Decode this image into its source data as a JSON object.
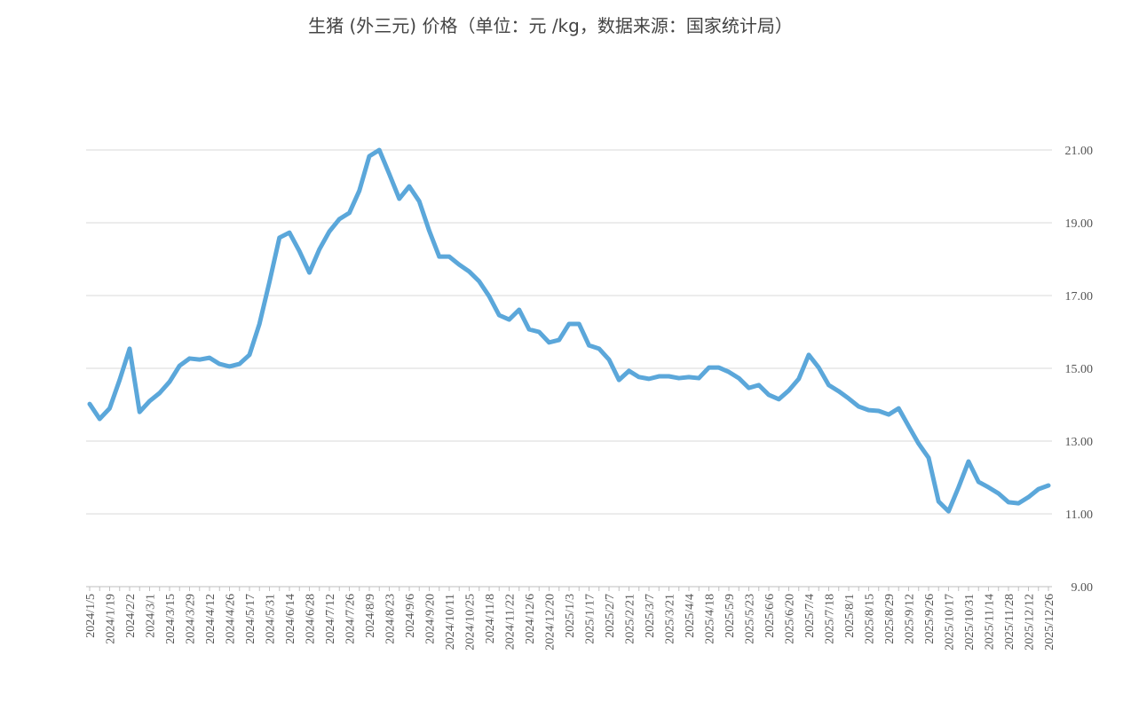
{
  "chart_data": {
    "type": "line",
    "title": "生猪 (外三元) 价格（单位：元 /kg，数据来源：国家统计局）",
    "categories": [
      "2024/1/5",
      null,
      "2024/1/19",
      null,
      "2024/2/2",
      null,
      "2024/3/1",
      null,
      "2024/3/15",
      null,
      "2024/3/29",
      null,
      "2024/4/12",
      null,
      "2024/4/26",
      null,
      "2024/5/17",
      null,
      "2024/5/31",
      null,
      "2024/6/14",
      null,
      "2024/6/28",
      null,
      "2024/7/12",
      null,
      "2024/7/26",
      null,
      "2024/8/9",
      null,
      "2024/8/23",
      null,
      "2024/9/6",
      null,
      "2024/9/20",
      null,
      "2024/10/11",
      null,
      "2024/10/25",
      null,
      "2024/11/8",
      null,
      "2024/11/22",
      null,
      "2024/12/6",
      null,
      "2024/12/20",
      null,
      "2025/1/3",
      null,
      "2025/1/17",
      null,
      "2025/2/7",
      null,
      "2025/2/21",
      null,
      "2025/3/7",
      null,
      "2025/3/21",
      null,
      "2025/4/4",
      null,
      "2025/4/18",
      null,
      "2025/5/9",
      null,
      "2025/5/23",
      null,
      "2025/6/6",
      null,
      "2025/6/20",
      null,
      "2025/7/4",
      null,
      "2025/7/18",
      null,
      "2025/8/1",
      null,
      "2025/8/15",
      null,
      "2025/8/29",
      null,
      "2025/9/12",
      null,
      "2025/9/26",
      null,
      "2025/10/17",
      null,
      "2025/10/31",
      null,
      "2025/11/14",
      null,
      "2025/11/28",
      null,
      "2025/12/12",
      null,
      "2025/12/26"
    ],
    "series": [
      {
        "color": "#5ba7da",
        "values": [
          14.02,
          13.61,
          13.9,
          14.68,
          15.54,
          13.8,
          14.1,
          14.32,
          14.63,
          15.07,
          15.27,
          15.24,
          15.29,
          15.12,
          15.05,
          15.12,
          15.37,
          16.22,
          17.37,
          18.59,
          18.73,
          18.22,
          17.63,
          18.27,
          18.76,
          19.1,
          19.27,
          19.88,
          20.83,
          21.0,
          20.34,
          19.66,
          20.0,
          19.59,
          18.78,
          18.07,
          18.07,
          17.85,
          17.66,
          17.39,
          16.98,
          16.46,
          16.34,
          16.61,
          16.07,
          16.0,
          15.71,
          15.78,
          16.22,
          16.22,
          15.63,
          15.54,
          15.24,
          14.68,
          14.93,
          14.76,
          14.71,
          14.78,
          14.78,
          14.73,
          14.76,
          14.73,
          15.02,
          15.02,
          14.9,
          14.73,
          14.46,
          14.54,
          14.27,
          14.15,
          14.39,
          14.71,
          15.37,
          15.02,
          14.54,
          14.37,
          14.17,
          13.95,
          13.85,
          13.83,
          13.73,
          13.9,
          13.41,
          12.93,
          12.54,
          11.34,
          11.07,
          11.73,
          12.44,
          11.88,
          11.73,
          11.56,
          11.32,
          11.29,
          11.46,
          11.68,
          11.78
        ]
      }
    ],
    "ylim": [
      9,
      21
    ],
    "yticks": [
      {
        "value": 9,
        "label": "9.00"
      },
      {
        "value": 11,
        "label": "11.00"
      },
      {
        "value": 13,
        "label": "13.00"
      },
      {
        "value": 15,
        "label": "15.00"
      },
      {
        "value": 17,
        "label": "17.00"
      },
      {
        "value": 19,
        "label": "19.00"
      },
      {
        "value": 21,
        "label": "21.00"
      }
    ],
    "grid": true
  }
}
